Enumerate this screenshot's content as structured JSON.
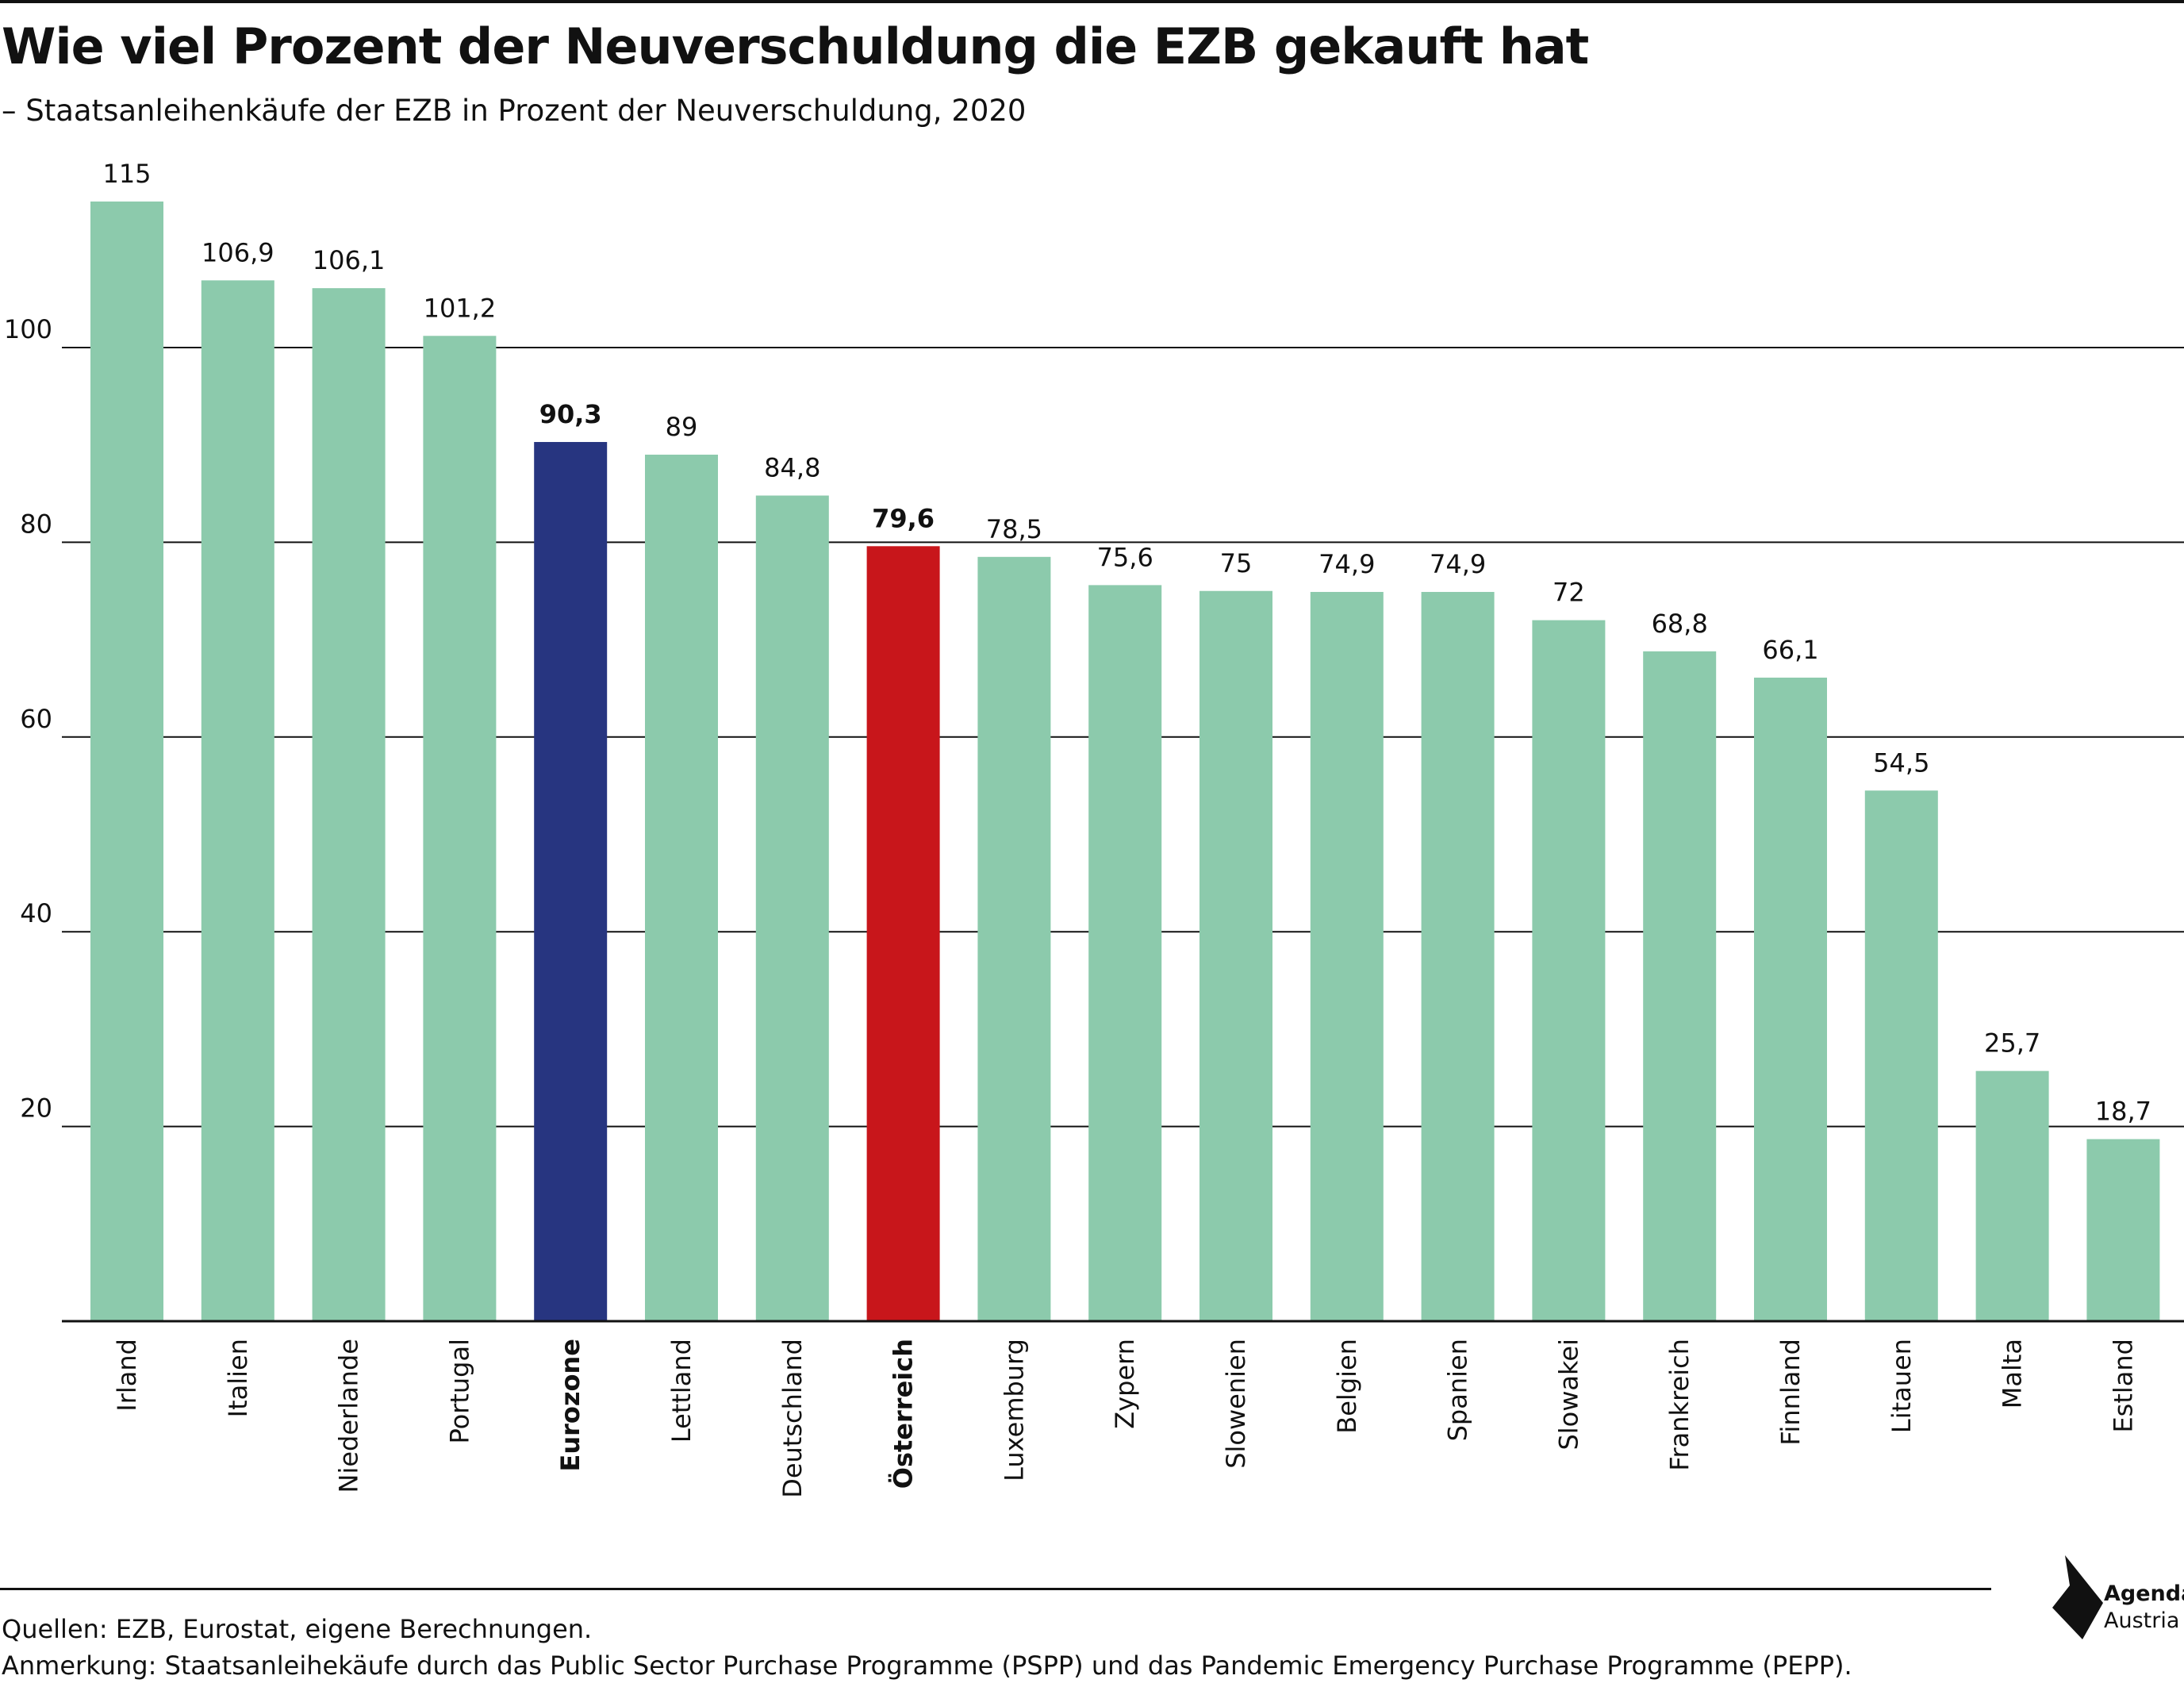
{
  "header": {
    "title": "Wie viel Prozent der Neuverschuldung die EZB gekauft hat",
    "subtitle": "– Staatsanleihenkäufe der EZB in Prozent der Neuverschuldung, 2020"
  },
  "footer": {
    "sources": "Quellen: EZB, Eurostat, eigene Berechnungen.",
    "note": "Anmerkung: Staatsanleihekäufe durch das Public Sector Purchase Programme (PSPP) und das Pandemic Emergency Purchase Programme (PEPP)."
  },
  "logo": {
    "line1": "Agenda",
    "line2": "Austria",
    "icon": "agenda-austria-logo-icon"
  },
  "colors": {
    "default": "#8ccaac",
    "eurozone": "#273580",
    "highlight": "#c8161b",
    "axis": "#111111"
  },
  "chart_data": {
    "type": "bar",
    "title": "Wie viel Prozent der Neuverschuldung die EZB gekauft hat",
    "subtitle": "– Staatsanleihenkäufe der EZB in Prozent der Neuverschuldung, 2020",
    "xlabel": "",
    "ylabel": "",
    "ylim": [
      0,
      120
    ],
    "yticks": [
      20,
      40,
      60,
      80,
      100
    ],
    "grid": true,
    "categories": [
      "Irland",
      "Italien",
      "Niederlande",
      "Portugal",
      "Eurozone",
      "Lettland",
      "Deutschland",
      "Österreich",
      "Luxemburg",
      "Zypern",
      "Slowenien",
      "Belgien",
      "Spanien",
      "Slowakei",
      "Frankreich",
      "Finnland",
      "Litauen",
      "Malta",
      "Estland"
    ],
    "values": [
      115,
      106.9,
      106.1,
      101.2,
      90.3,
      89,
      84.8,
      79.6,
      78.5,
      75.6,
      75,
      74.9,
      74.9,
      72,
      68.8,
      66.1,
      54.5,
      25.7,
      18.7
    ],
    "value_labels": [
      "115",
      "106,9",
      "106,1",
      "101,2",
      "90,3",
      "89",
      "84,8",
      "79,6",
      "78,5",
      "75,6",
      "75",
      "74,9",
      "74,9",
      "72",
      "68,8",
      "66,1",
      "54,5",
      "25,7",
      "18,7"
    ],
    "highlighted": {
      "Eurozone": "#273580",
      "Österreich": "#c8161b"
    },
    "bold_categories": [
      "Eurozone",
      "Österreich"
    ]
  }
}
